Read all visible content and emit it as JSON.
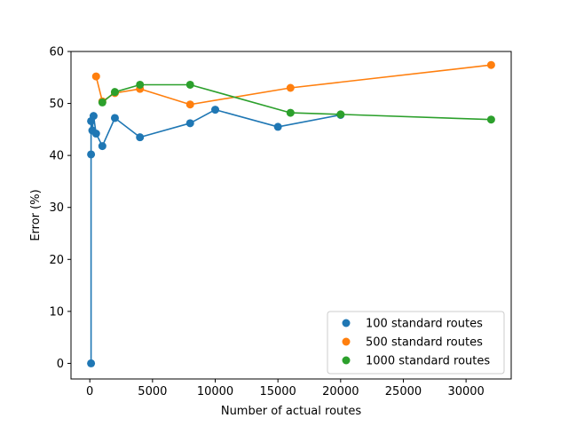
{
  "chart_data": {
    "type": "line",
    "title": "",
    "xlabel": "Number of actual routes",
    "ylabel": "Error (%)",
    "xlim": [
      -1500,
      33600
    ],
    "ylim": [
      -3,
      60
    ],
    "xticks": [
      0,
      5000,
      10000,
      15000,
      20000,
      25000,
      30000
    ],
    "yticks": [
      0,
      10,
      20,
      30,
      40,
      50,
      60
    ],
    "grid": false,
    "legend_position": "lower-right",
    "series": [
      {
        "name": "100 standard routes",
        "color": "#1f77b4",
        "x": [
          100,
          100,
          100,
          200,
          300,
          500,
          1000,
          2000,
          4000,
          8000,
          10000,
          15000,
          20000
        ],
        "y": [
          0,
          40.2,
          46.6,
          44.8,
          47.6,
          44.2,
          41.8,
          47.2,
          43.5,
          46.2,
          48.8,
          45.5,
          47.8
        ]
      },
      {
        "name": "500 standard routes",
        "color": "#ff7f0e",
        "x": [
          500,
          1000,
          2000,
          4000,
          8000,
          16000,
          32000
        ],
        "y": [
          55.2,
          50.4,
          52.0,
          52.8,
          49.8,
          53.0,
          57.4
        ]
      },
      {
        "name": "1000 standard routes",
        "color": "#2ca02c",
        "x": [
          1000,
          2000,
          4000,
          8000,
          16000,
          20000,
          32000
        ],
        "y": [
          50.2,
          52.2,
          53.6,
          53.6,
          48.2,
          47.9,
          46.9
        ]
      }
    ]
  }
}
